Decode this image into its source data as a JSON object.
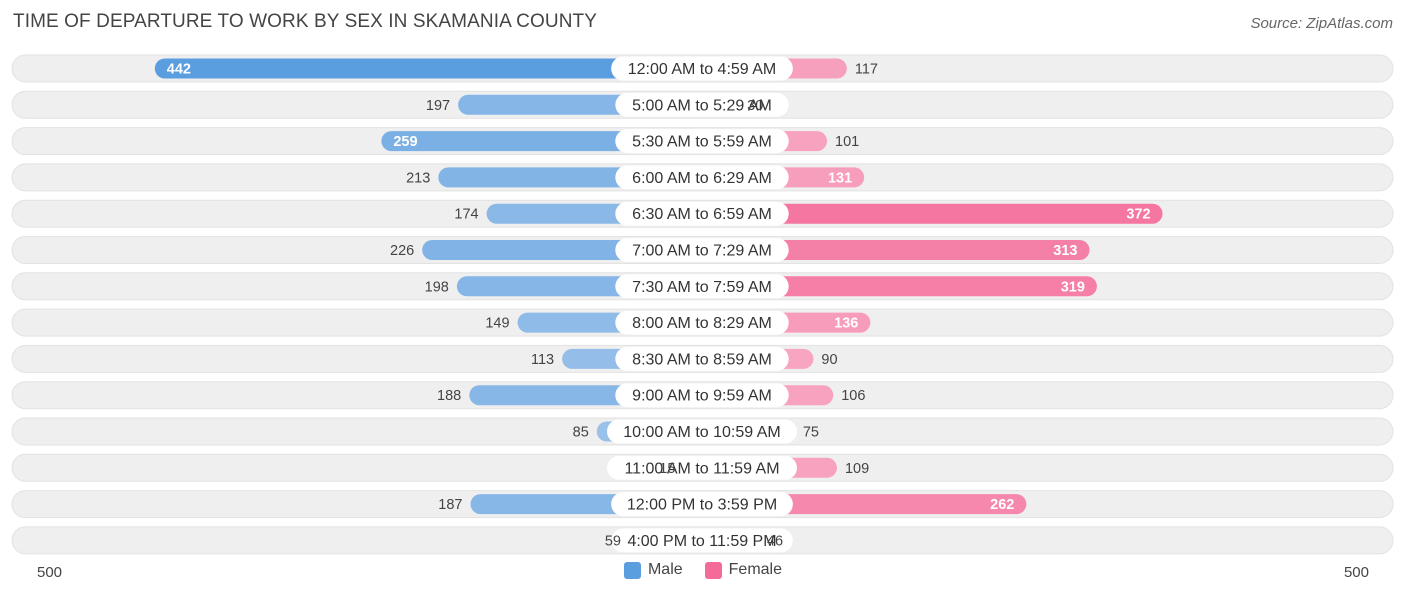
{
  "title": "TIME OF DEPARTURE TO WORK BY SEX IN SKAMANIA COUNTY",
  "source": "Source: ZipAtlas.com",
  "colors": {
    "male_strong": "#5b9ee0",
    "male_light": "#a8c9ec",
    "female_strong": "#f46a98",
    "female_light": "#f8b4cb",
    "row_bg": "#efefef"
  },
  "legend": {
    "male_label": "Male",
    "female_label": "Female"
  },
  "chart_data": {
    "type": "bar",
    "orientation": "horizontal-diverging",
    "title": "TIME OF DEPARTURE TO WORK BY SEX IN SKAMANIA COUNTY",
    "xlim": [
      -500,
      500
    ],
    "axis_left_label": "500",
    "axis_right_label": "500",
    "categories": [
      "12:00 AM to 4:59 AM",
      "5:00 AM to 5:29 AM",
      "5:30 AM to 5:59 AM",
      "6:00 AM to 6:29 AM",
      "6:30 AM to 6:59 AM",
      "7:00 AM to 7:29 AM",
      "7:30 AM to 7:59 AM",
      "8:00 AM to 8:29 AM",
      "8:30 AM to 8:59 AM",
      "9:00 AM to 9:59 AM",
      "10:00 AM to 10:59 AM",
      "11:00 AM to 11:59 AM",
      "12:00 PM to 3:59 PM",
      "4:00 PM to 11:59 PM"
    ],
    "series": [
      {
        "name": "Male",
        "values": [
          442,
          197,
          259,
          213,
          174,
          226,
          198,
          149,
          113,
          188,
          85,
          15,
          187,
          59
        ]
      },
      {
        "name": "Female",
        "values": [
          117,
          30,
          101,
          131,
          372,
          313,
          319,
          136,
          90,
          106,
          75,
          109,
          262,
          46
        ]
      }
    ]
  }
}
